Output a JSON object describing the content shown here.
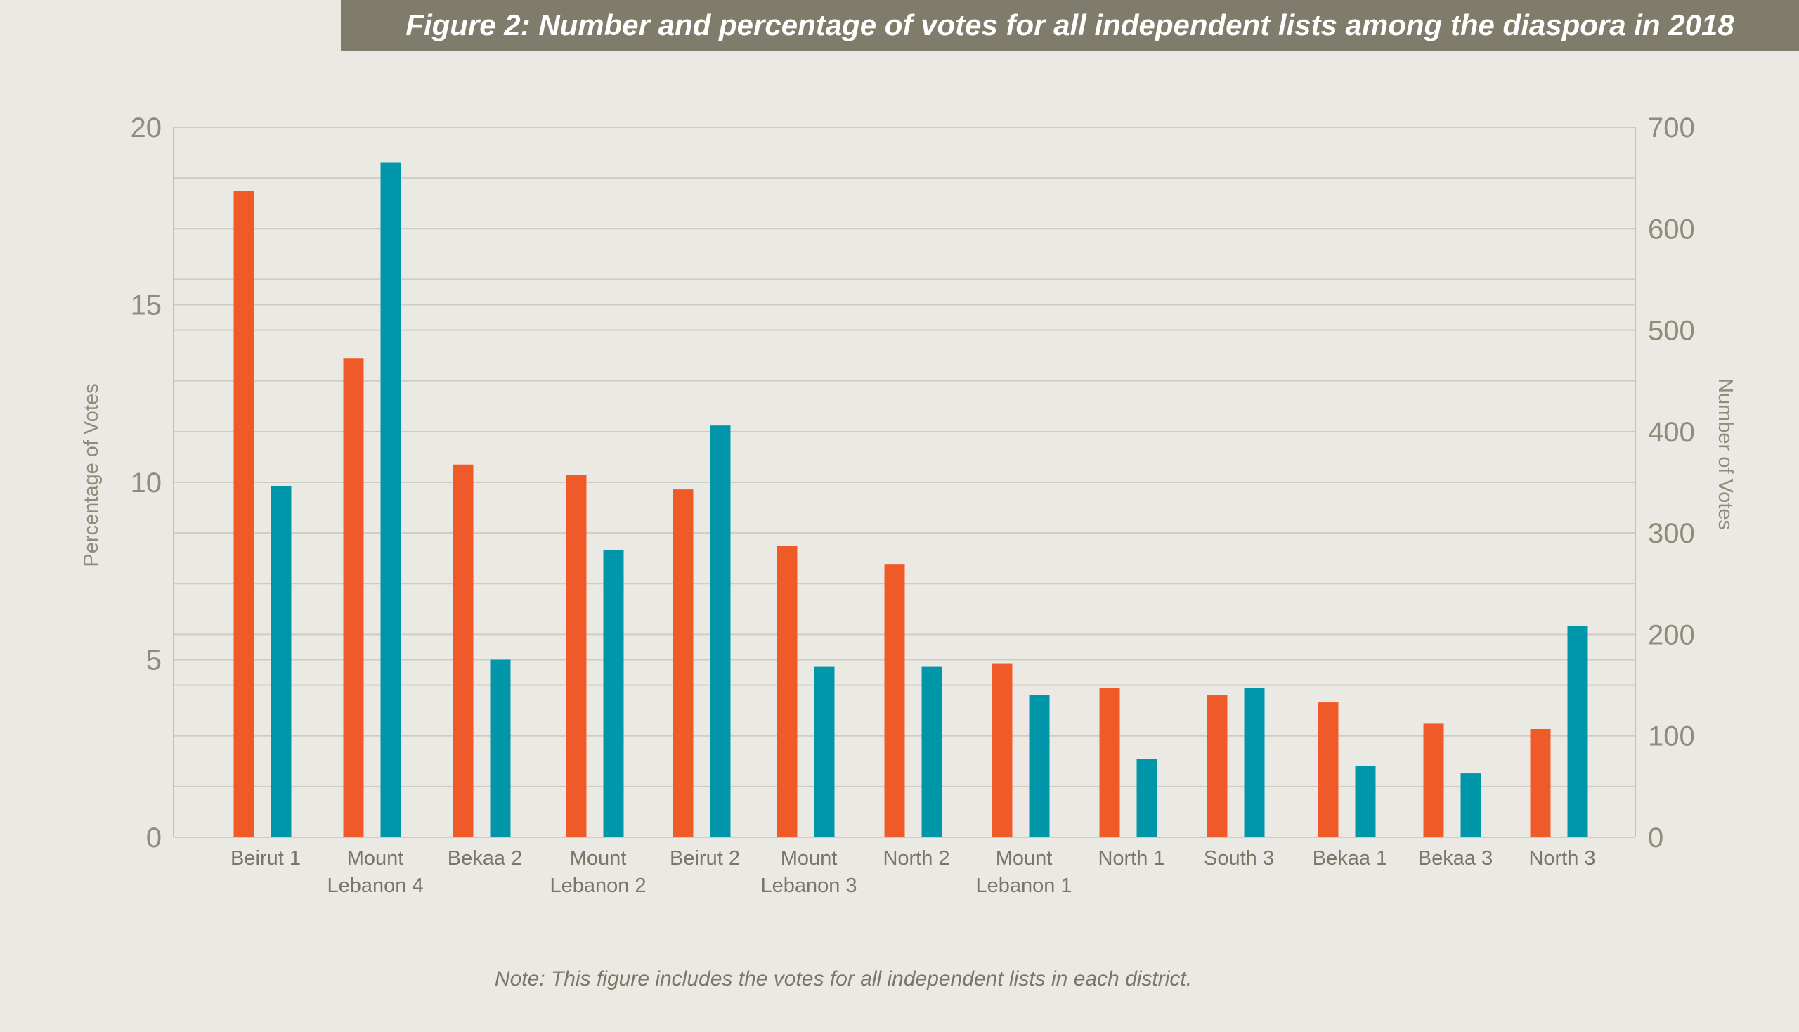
{
  "title": "Figure 2: Number and percentage of votes for all independent lists among the diaspora in 2018",
  "note": "Note: This figure includes the votes for all independent lists in each district.",
  "colors": {
    "percentage": "#f05a28",
    "votes": "#0096a9",
    "grid": "#cfcdc3",
    "background": "#ebe9e3",
    "banner": "#7f7c6b"
  },
  "chart_data": {
    "type": "bar",
    "categories": [
      [
        "Beirut 1"
      ],
      [
        "Mount",
        "Lebanon 4"
      ],
      [
        "Bekaa 2"
      ],
      [
        "Mount",
        "Lebanon 2"
      ],
      [
        "Beirut 2"
      ],
      [
        "Mount",
        "Lebanon 3"
      ],
      [
        "North 2"
      ],
      [
        "Mount",
        "Lebanon 1"
      ],
      [
        "North 1"
      ],
      [
        "South 3"
      ],
      [
        "Bekaa 1"
      ],
      [
        "Bekaa 3"
      ],
      [
        "North 3"
      ]
    ],
    "series": [
      {
        "axis": "left",
        "values": [
          18.2,
          13.5,
          10.5,
          10.2,
          9.8,
          8.2,
          7.7,
          4.9,
          4.2,
          4.0,
          3.8,
          3.2,
          3.05
        ]
      },
      {
        "axis": "right",
        "values": [
          346,
          665,
          175,
          283,
          406,
          168,
          168,
          140,
          77,
          147,
          70,
          63,
          208
        ]
      }
    ],
    "ylabel": "Percentage of Votes",
    "ylabel_right": "Number of Votes",
    "ylim": [
      0,
      20
    ],
    "ylim_right": [
      0,
      700
    ],
    "yticks": [
      "0",
      "5",
      "10",
      "15",
      "20"
    ],
    "yticks_right": [
      "0",
      "100",
      "200",
      "300",
      "400",
      "500",
      "600",
      "700"
    ],
    "grid": true
  }
}
